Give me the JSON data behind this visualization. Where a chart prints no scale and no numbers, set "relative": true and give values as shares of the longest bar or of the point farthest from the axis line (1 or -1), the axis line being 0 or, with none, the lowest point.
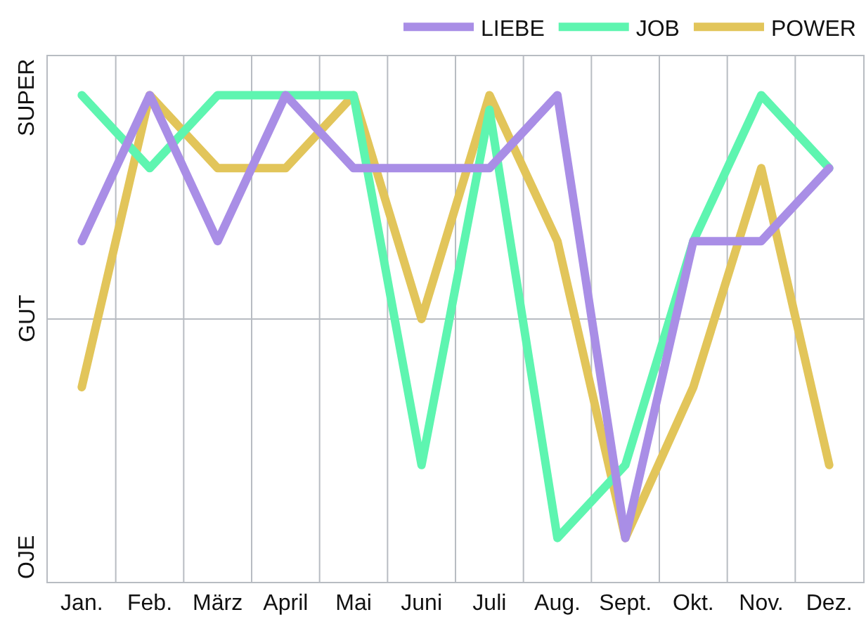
{
  "chart_data": {
    "type": "line",
    "relative": true,
    "categories": [
      "Jan.",
      "Feb.",
      "März",
      "April",
      "Mai",
      "Juni",
      "Juli",
      "Aug.",
      "Sept.",
      "Okt.",
      "Nov.",
      "Dez."
    ],
    "series": [
      {
        "name": "LIEBE",
        "color": "#a98ee6",
        "values": [
          0.7,
          1,
          0.7,
          1,
          0.85,
          0.85,
          0.85,
          1,
          0.09,
          0.7,
          0.7,
          0.85
        ]
      },
      {
        "name": "JOB",
        "color": "#5ef5b0",
        "values": [
          1,
          0.85,
          1,
          1,
          1,
          0.24,
          0.97,
          0.09,
          0.24,
          0.7,
          1,
          0.85
        ]
      },
      {
        "name": "POWER",
        "color": "#e2c55a",
        "values": [
          0.4,
          1,
          0.85,
          0.85,
          1,
          0.54,
          1,
          0.7,
          0.09,
          0.4,
          0.85,
          0.24
        ]
      }
    ],
    "ref_lines": [
      {
        "axis": "y",
        "value": 0.54,
        "label": "GUT",
        "color": "#b8bcc2"
      }
    ],
    "annotations": [
      "SUPER",
      "OJE"
    ],
    "grid": "x",
    "legend": "top right",
    "marker": "none",
    "line_style": "solid"
  }
}
